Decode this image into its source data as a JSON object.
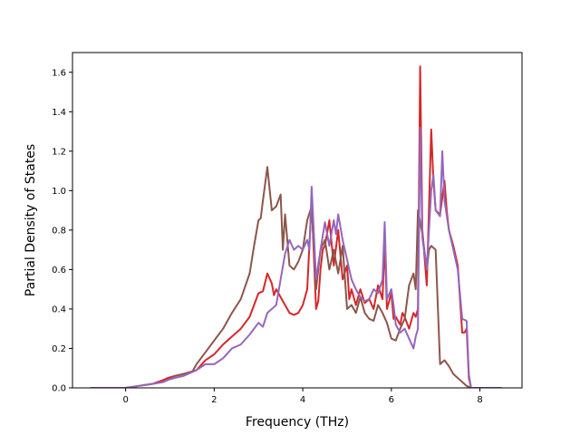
{
  "chart_data": {
    "type": "line",
    "title": "",
    "xlabel": "Frequency (THz)",
    "ylabel": "Partial Density of States",
    "xlim": [
      -1.2,
      8.95
    ],
    "ylim": [
      0.0,
      1.7
    ],
    "xticks": [
      0,
      2,
      4,
      6,
      8
    ],
    "xtick_labels": [
      "0",
      "2",
      "4",
      "6",
      "8"
    ],
    "yticks": [
      0.0,
      0.2,
      0.4,
      0.6,
      0.8,
      1.0,
      1.2,
      1.4,
      1.6
    ],
    "ytick_labels": [
      "0.0",
      "0.2",
      "0.4",
      "0.6",
      "0.8",
      "1.0",
      "1.2",
      "1.4",
      "1.6"
    ],
    "grid": false,
    "series": [
      {
        "color": "#d62728",
        "x": [
          -0.8,
          0.0,
          0.3,
          0.6,
          0.85,
          0.95,
          1.1,
          1.3,
          1.6,
          1.8,
          2.0,
          2.2,
          2.4,
          2.6,
          2.8,
          3.0,
          3.1,
          3.2,
          3.3,
          3.35,
          3.4,
          3.5,
          3.6,
          3.7,
          3.8,
          3.9,
          4.0,
          4.1,
          4.2,
          4.3,
          4.35,
          4.4,
          4.45,
          4.5,
          4.6,
          4.7,
          4.8,
          4.9,
          5.0,
          5.05,
          5.1,
          5.2,
          5.3,
          5.4,
          5.5,
          5.6,
          5.7,
          5.8,
          5.85,
          5.9,
          6.0,
          6.05,
          6.1,
          6.2,
          6.25,
          6.3,
          6.4,
          6.5,
          6.55,
          6.6,
          6.65,
          6.7,
          6.8,
          6.9,
          6.95,
          7.0,
          7.1,
          7.2,
          7.25,
          7.3,
          7.4,
          7.5,
          7.6,
          7.65,
          7.7,
          7.75,
          7.8,
          8.5
        ],
        "y": [
          0.0,
          0.0,
          0.01,
          0.02,
          0.04,
          0.05,
          0.06,
          0.07,
          0.09,
          0.14,
          0.17,
          0.22,
          0.26,
          0.3,
          0.36,
          0.48,
          0.49,
          0.58,
          0.53,
          0.47,
          0.5,
          0.46,
          0.42,
          0.38,
          0.37,
          0.38,
          0.42,
          0.5,
          0.95,
          0.4,
          0.44,
          0.6,
          0.7,
          0.72,
          0.85,
          0.62,
          0.8,
          0.55,
          0.62,
          0.45,
          0.5,
          0.42,
          0.5,
          0.43,
          0.45,
          0.4,
          0.52,
          0.45,
          0.74,
          0.4,
          0.48,
          0.35,
          0.36,
          0.32,
          0.38,
          0.36,
          0.3,
          0.38,
          0.36,
          0.4,
          1.63,
          0.8,
          0.52,
          1.31,
          1.05,
          0.9,
          0.88,
          1.05,
          0.9,
          0.8,
          0.72,
          0.62,
          0.28,
          0.28,
          0.3,
          0.05,
          0.0,
          0.0
        ]
      },
      {
        "color": "#8c564b",
        "x": [
          -0.8,
          0.0,
          0.3,
          0.6,
          0.85,
          0.95,
          1.1,
          1.3,
          1.5,
          1.6,
          1.8,
          2.0,
          2.2,
          2.4,
          2.6,
          2.8,
          2.9,
          3.0,
          3.05,
          3.1,
          3.2,
          3.3,
          3.4,
          3.5,
          3.55,
          3.6,
          3.7,
          3.8,
          3.9,
          4.0,
          4.1,
          4.2,
          4.3,
          4.4,
          4.5,
          4.6,
          4.7,
          4.8,
          4.9,
          5.0,
          5.1,
          5.2,
          5.3,
          5.4,
          5.5,
          5.6,
          5.7,
          5.8,
          5.9,
          6.0,
          6.1,
          6.2,
          6.3,
          6.4,
          6.5,
          6.55,
          6.6,
          6.7,
          6.8,
          6.85,
          6.9,
          7.0,
          7.1,
          7.2,
          7.3,
          7.4,
          7.5,
          7.6,
          7.7,
          7.8,
          8.5
        ],
        "y": [
          0.0,
          0.0,
          0.01,
          0.02,
          0.03,
          0.04,
          0.06,
          0.07,
          0.08,
          0.12,
          0.18,
          0.24,
          0.3,
          0.38,
          0.45,
          0.58,
          0.72,
          0.85,
          0.86,
          0.95,
          1.12,
          0.9,
          0.92,
          0.98,
          0.7,
          0.88,
          0.62,
          0.6,
          0.64,
          0.7,
          0.85,
          0.92,
          0.5,
          0.7,
          0.75,
          0.6,
          0.7,
          0.58,
          0.72,
          0.4,
          0.42,
          0.38,
          0.46,
          0.38,
          0.35,
          0.34,
          0.42,
          0.38,
          0.33,
          0.25,
          0.24,
          0.3,
          0.35,
          0.52,
          0.58,
          0.5,
          0.9,
          0.78,
          0.6,
          0.7,
          0.72,
          0.7,
          0.12,
          0.14,
          0.11,
          0.07,
          0.05,
          0.03,
          0.01,
          0.0,
          0.0
        ]
      },
      {
        "color": "#9467bd",
        "x": [
          -0.8,
          0.0,
          0.3,
          0.6,
          0.85,
          0.95,
          1.1,
          1.3,
          1.6,
          1.8,
          2.0,
          2.2,
          2.4,
          2.6,
          2.8,
          3.0,
          3.1,
          3.2,
          3.3,
          3.4,
          3.5,
          3.6,
          3.7,
          3.8,
          3.9,
          4.0,
          4.1,
          4.15,
          4.2,
          4.3,
          4.4,
          4.5,
          4.6,
          4.7,
          4.75,
          4.8,
          4.9,
          5.0,
          5.1,
          5.2,
          5.3,
          5.4,
          5.5,
          5.6,
          5.7,
          5.8,
          5.85,
          5.9,
          6.0,
          6.05,
          6.1,
          6.2,
          6.3,
          6.4,
          6.5,
          6.55,
          6.6,
          6.65,
          6.7,
          6.8,
          6.9,
          6.95,
          7.0,
          7.1,
          7.15,
          7.2,
          7.3,
          7.4,
          7.5,
          7.6,
          7.7,
          7.75,
          7.8,
          8.5
        ],
        "y": [
          0.0,
          0.0,
          0.01,
          0.02,
          0.03,
          0.04,
          0.05,
          0.06,
          0.09,
          0.12,
          0.12,
          0.15,
          0.2,
          0.22,
          0.27,
          0.33,
          0.31,
          0.38,
          0.4,
          0.42,
          0.55,
          0.68,
          0.75,
          0.7,
          0.72,
          0.7,
          0.75,
          0.7,
          1.02,
          0.55,
          0.7,
          0.84,
          0.72,
          0.85,
          0.78,
          0.88,
          0.75,
          0.65,
          0.55,
          0.5,
          0.46,
          0.44,
          0.45,
          0.5,
          0.48,
          0.55,
          0.84,
          0.45,
          0.5,
          0.42,
          0.32,
          0.28,
          0.3,
          0.25,
          0.2,
          0.26,
          0.3,
          1.32,
          0.76,
          0.6,
          1.0,
          1.08,
          0.9,
          0.87,
          1.2,
          0.95,
          0.8,
          0.7,
          0.6,
          0.35,
          0.34,
          0.07,
          0.0,
          0.0
        ]
      }
    ]
  }
}
